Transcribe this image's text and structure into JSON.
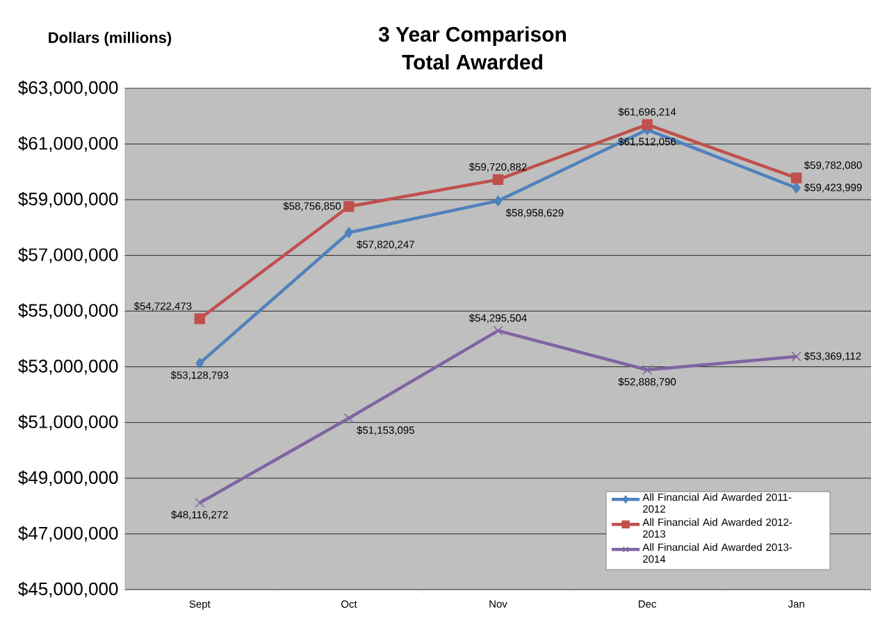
{
  "chart_data": {
    "type": "line",
    "title": "3 Year Comparison",
    "subtitle": "Total Awarded",
    "ylabel": "Dollars (millions)",
    "categories": [
      "Sept",
      "Oct",
      "Nov",
      "Dec",
      "Jan"
    ],
    "series": [
      {
        "name": "All Financial Aid Awarded 2011-2012",
        "color": "#4f81bd",
        "marker": "diamond",
        "values": [
          53128793,
          57820247,
          58958629,
          61512056,
          59423999
        ],
        "value_labels": [
          "$53,128,793",
          "$57,820,247",
          "$58,958,629",
          "$61,512,056",
          "$59,423,999"
        ]
      },
      {
        "name": "All Financial Aid Awarded 2012-2013",
        "color": "#c0504d",
        "marker": "square",
        "values": [
          54722473,
          58756850,
          59720882,
          61696214,
          59782080
        ],
        "value_labels": [
          "$54,722,473",
          "$58,756,850",
          "$59,720,882",
          "$61,696,214",
          "$59,782,080"
        ]
      },
      {
        "name": "All Financial Aid Awarded 2013-2014",
        "color": "#8064a2",
        "marker": "cross",
        "values": [
          48116272,
          51153095,
          54295504,
          52888790,
          53369112
        ],
        "value_labels": [
          "$48,116,272",
          "$51,153,095",
          "$54,295,504",
          "$52,888,790",
          "$53,369,112"
        ]
      }
    ],
    "ylim": [
      45000000,
      63000000
    ],
    "yticks": [
      {
        "value": 45000000,
        "label": "$45,000,000"
      },
      {
        "value": 47000000,
        "label": "$47,000,000"
      },
      {
        "value": 49000000,
        "label": "$49,000,000"
      },
      {
        "value": 51000000,
        "label": "$51,000,000"
      },
      {
        "value": 53000000,
        "label": "$53,000,000"
      },
      {
        "value": 55000000,
        "label": "$55,000,000"
      },
      {
        "value": 57000000,
        "label": "$57,000,000"
      },
      {
        "value": 59000000,
        "label": "$59,000,000"
      },
      {
        "value": 61000000,
        "label": "$61,000,000"
      },
      {
        "value": 63000000,
        "label": "$63,000,000"
      }
    ],
    "grid": "y",
    "legend": "bottom right",
    "line_style": "solid"
  }
}
